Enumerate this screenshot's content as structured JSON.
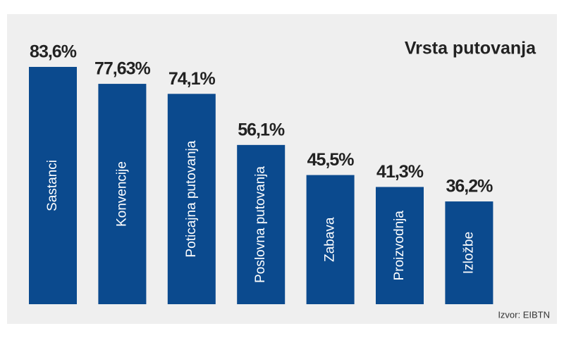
{
  "chart_data": {
    "type": "bar",
    "title": "Vrsta putovanja",
    "categories": [
      "Sastanci",
      "Konvencije",
      "Poticajna putovanja",
      "Poslovna putovanja",
      "Zabava",
      "Proizvodnja",
      "Izložbe"
    ],
    "values": [
      83.6,
      77.63,
      74.1,
      56.1,
      45.5,
      41.3,
      36.2
    ],
    "value_labels": [
      "83,6%",
      "77,63%",
      "74,1%",
      "56,1%",
      "45,5%",
      "41,3%",
      "36,2%"
    ],
    "color": "#0b4a8e",
    "source": "Izvor: EIBTN"
  }
}
